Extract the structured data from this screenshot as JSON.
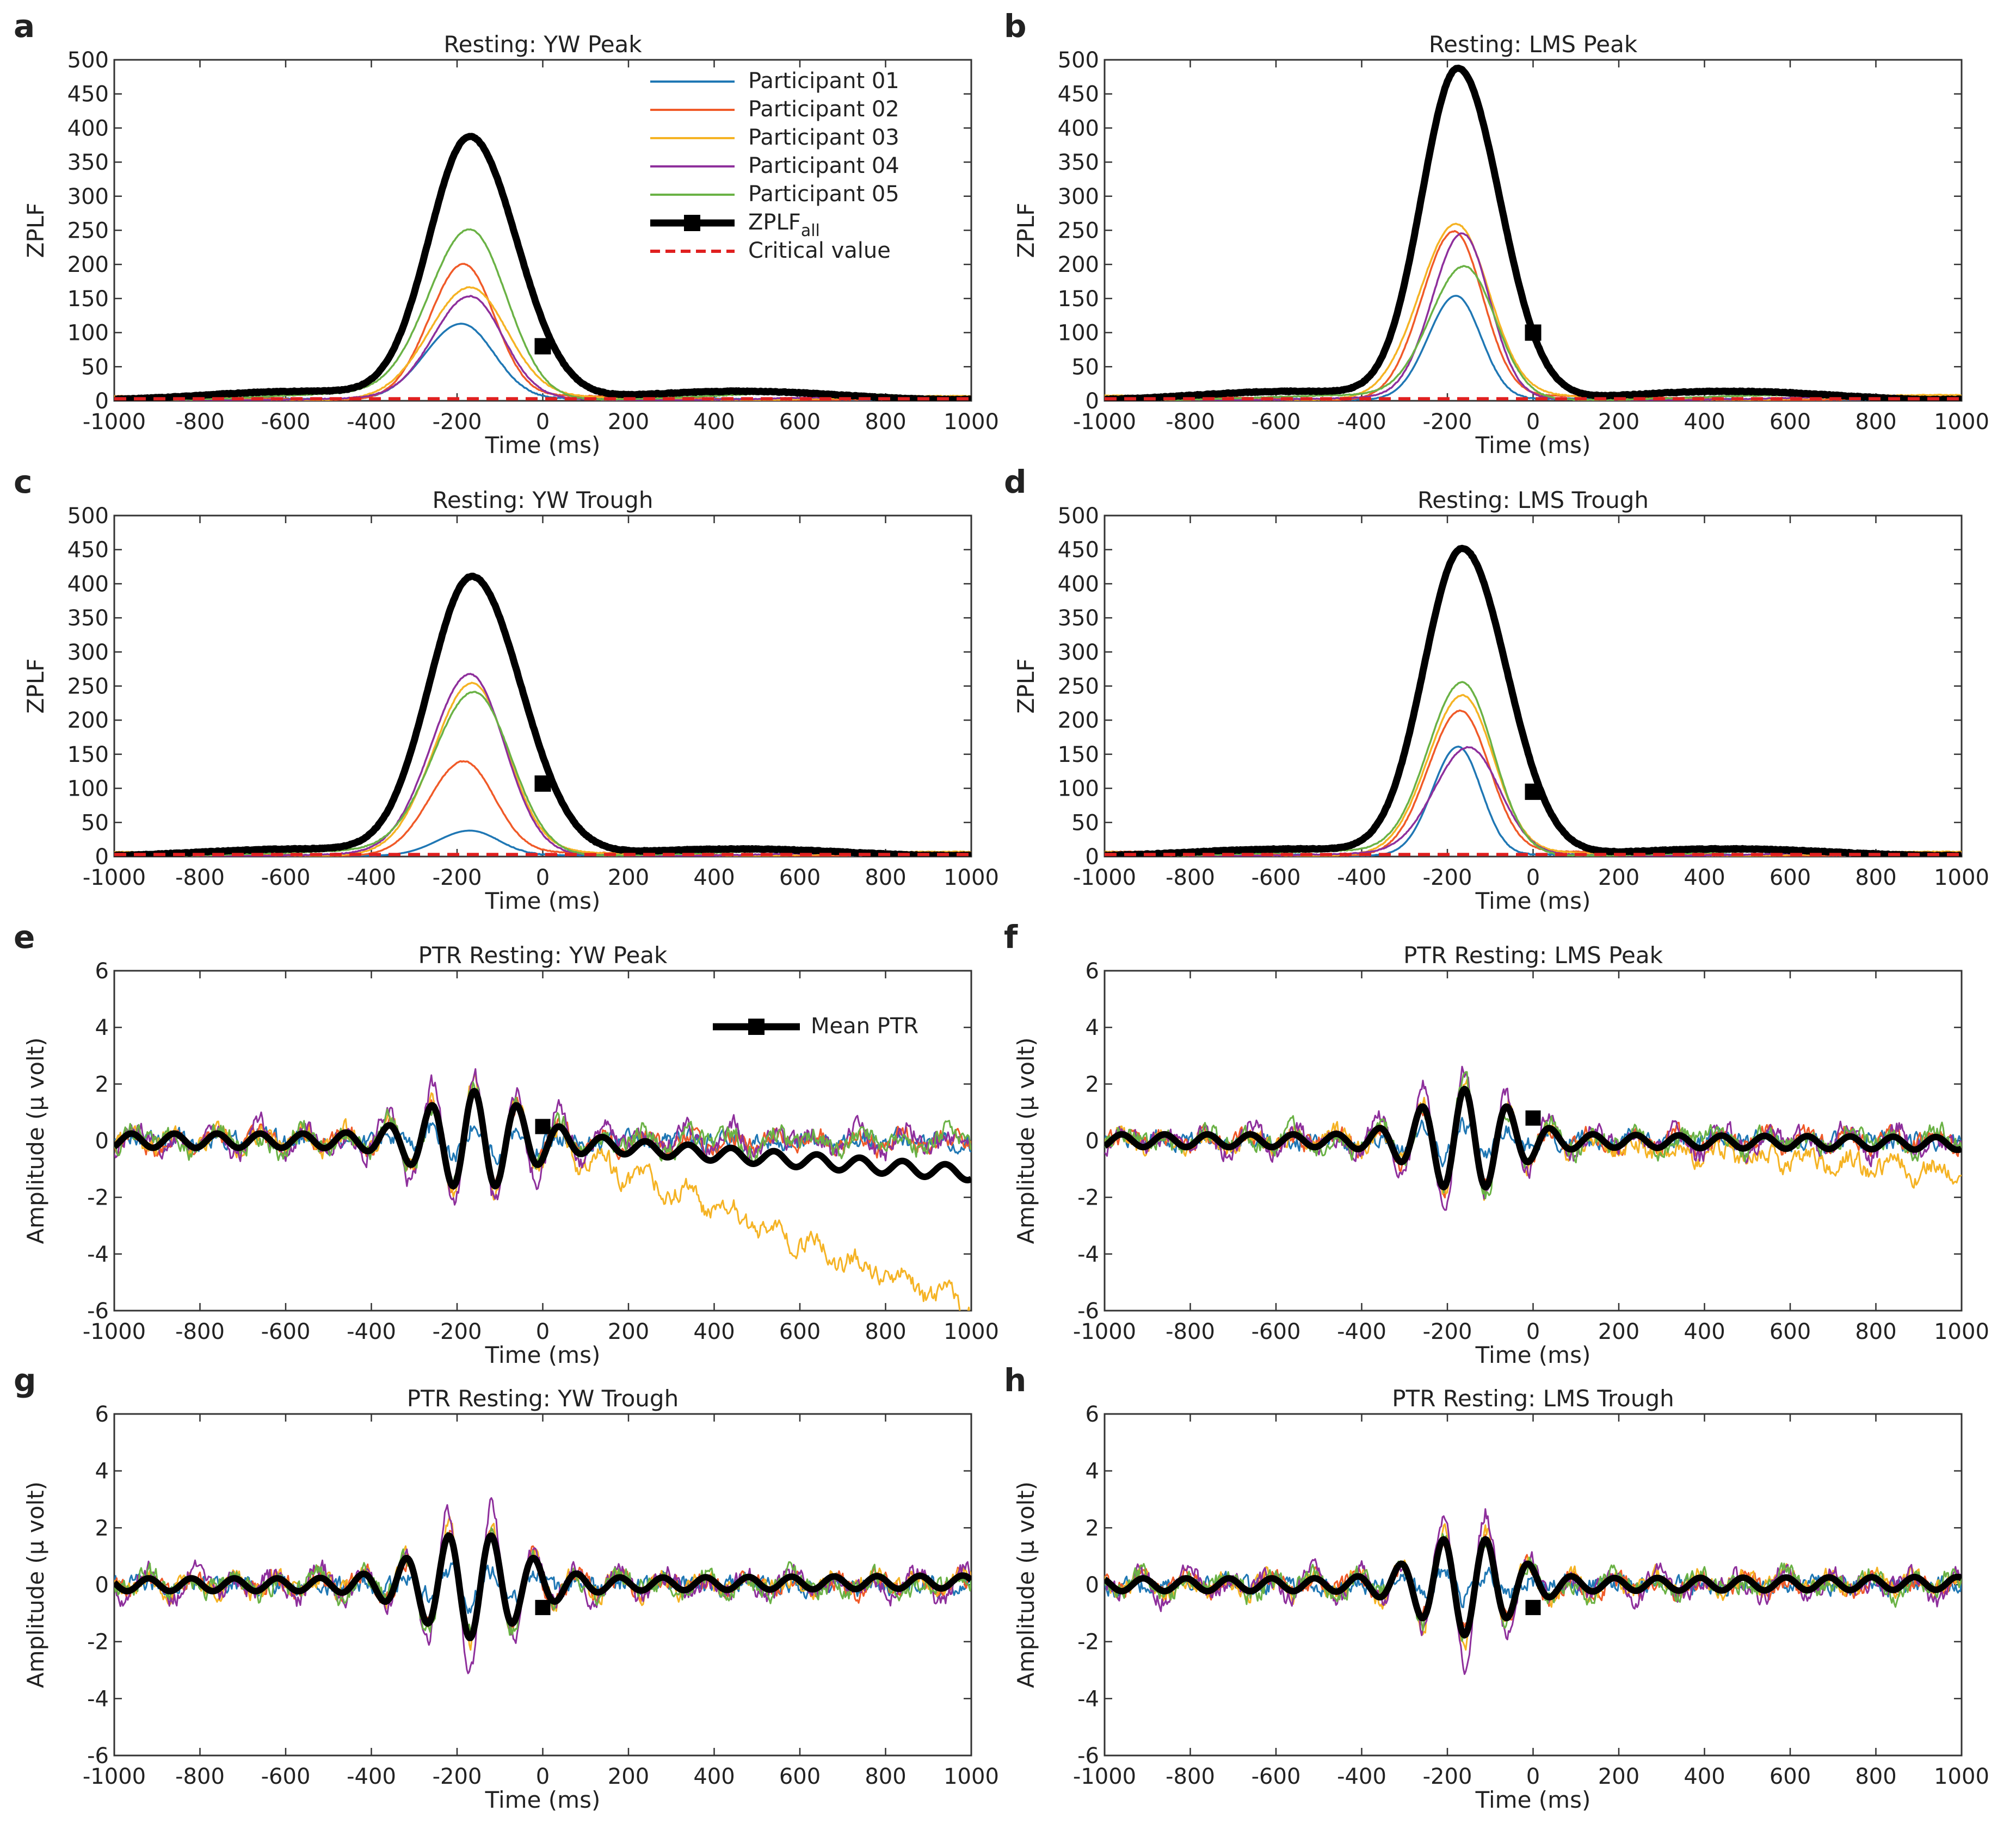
{
  "colors": {
    "participant_01": "#1f77b4",
    "participant_02": "#f05a28",
    "participant_03": "#f5b324",
    "participant_04": "#8e2f9c",
    "participant_05": "#6ab245",
    "aggregate": "#000000",
    "critical": "#e02020"
  },
  "chart_data": [
    {
      "id": "a",
      "type": "line",
      "letter": "a",
      "title": "Resting: YW Peak",
      "xlabel": "Time (ms)",
      "ylabel": "ZPLF",
      "xlim": [
        -1000,
        1000
      ],
      "ylim": [
        0,
        500
      ],
      "xticks": [
        -1000,
        -800,
        -600,
        -400,
        -200,
        0,
        200,
        400,
        600,
        800,
        1000
      ],
      "yticks": [
        0,
        50,
        100,
        150,
        200,
        250,
        300,
        350,
        400,
        450,
        500
      ],
      "legend": {
        "location": "top-right",
        "entries": [
          "Participant 01",
          "Participant 02",
          "Participant 03",
          "Participant 04",
          "Participant 05",
          "ZPLF",
          "Critical value"
        ],
        "aggregate_subscript": "all"
      },
      "series": [
        {
          "name": "Participant 01",
          "peak_ms": -190,
          "peak": 112,
          "width": 85,
          "base": 3
        },
        {
          "name": "Participant 02",
          "peak_ms": -185,
          "peak": 197,
          "width": 80,
          "base": 5
        },
        {
          "name": "Participant 03",
          "peak_ms": -170,
          "peak": 160,
          "width": 95,
          "base": 5
        },
        {
          "name": "Participant 04",
          "peak_ms": -170,
          "peak": 148,
          "width": 85,
          "base": 4
        },
        {
          "name": "Participant 05",
          "peak_ms": -170,
          "peak": 244,
          "width": 95,
          "base": 8
        },
        {
          "name": "ZPLFall",
          "peak_ms": -170,
          "peak": 384,
          "width": 95,
          "base": 10,
          "marker_at_ms": 0,
          "marker_value": 80
        }
      ],
      "critical_value": 3
    },
    {
      "id": "b",
      "type": "line",
      "letter": "b",
      "title": "Resting: LMS Peak",
      "xlabel": "Time (ms)",
      "ylabel": "ZPLF",
      "xlim": [
        -1000,
        1000
      ],
      "ylim": [
        0,
        500
      ],
      "xticks": [
        -1000,
        -800,
        -600,
        -400,
        -200,
        0,
        200,
        400,
        600,
        800,
        1000
      ],
      "yticks": [
        0,
        50,
        100,
        150,
        200,
        250,
        300,
        350,
        400,
        450,
        500
      ],
      "series": [
        {
          "name": "Participant 01",
          "peak_ms": -180,
          "peak": 153,
          "width": 65,
          "base": 3
        },
        {
          "name": "Participant 02",
          "peak_ms": -185,
          "peak": 245,
          "width": 75,
          "base": 5
        },
        {
          "name": "Participant 03",
          "peak_ms": -180,
          "peak": 252,
          "width": 85,
          "base": 6
        },
        {
          "name": "Participant 04",
          "peak_ms": -165,
          "peak": 240,
          "width": 70,
          "base": 4
        },
        {
          "name": "Participant 05",
          "peak_ms": -160,
          "peak": 192,
          "width": 80,
          "base": 6
        },
        {
          "name": "ZPLFall",
          "peak_ms": -175,
          "peak": 484,
          "width": 85,
          "base": 10,
          "marker_at_ms": 0,
          "marker_value": 100
        }
      ],
      "critical_value": 3
    },
    {
      "id": "c",
      "type": "line",
      "letter": "c",
      "title": "Resting: YW Trough",
      "xlabel": "Time (ms)",
      "ylabel": "ZPLF",
      "xlim": [
        -1000,
        1000
      ],
      "ylim": [
        0,
        500
      ],
      "xticks": [
        -1000,
        -800,
        -600,
        -400,
        -200,
        0,
        200,
        400,
        600,
        800,
        1000
      ],
      "yticks": [
        0,
        50,
        100,
        150,
        200,
        250,
        300,
        350,
        400,
        450,
        500
      ],
      "series": [
        {
          "name": "Participant 01",
          "peak_ms": -170,
          "peak": 37,
          "width": 75,
          "base": 2
        },
        {
          "name": "Participant 02",
          "peak_ms": -185,
          "peak": 137,
          "width": 80,
          "base": 4
        },
        {
          "name": "Participant 03",
          "peak_ms": -165,
          "peak": 248,
          "width": 90,
          "base": 5
        },
        {
          "name": "Participant 04",
          "peak_ms": -170,
          "peak": 262,
          "width": 90,
          "base": 4
        },
        {
          "name": "Participant 05",
          "peak_ms": -160,
          "peak": 236,
          "width": 95,
          "base": 6
        },
        {
          "name": "ZPLFall",
          "peak_ms": -165,
          "peak": 408,
          "width": 100,
          "base": 8,
          "marker_at_ms": 0,
          "marker_value": 107
        }
      ],
      "critical_value": 3
    },
    {
      "id": "d",
      "type": "line",
      "letter": "d",
      "title": "Resting: LMS Trough",
      "xlabel": "Time (ms)",
      "ylabel": "ZPLF",
      "xlim": [
        -1000,
        1000
      ],
      "ylim": [
        0,
        500
      ],
      "xticks": [
        -1000,
        -800,
        -600,
        -400,
        -200,
        0,
        200,
        400,
        600,
        800,
        1000
      ],
      "yticks": [
        0,
        50,
        100,
        150,
        200,
        250,
        300,
        350,
        400,
        450,
        500
      ],
      "series": [
        {
          "name": "Participant 01",
          "peak_ms": -175,
          "peak": 160,
          "width": 60,
          "base": 3
        },
        {
          "name": "Participant 02",
          "peak_ms": -170,
          "peak": 210,
          "width": 75,
          "base": 5
        },
        {
          "name": "Participant 03",
          "peak_ms": -165,
          "peak": 230,
          "width": 80,
          "base": 5
        },
        {
          "name": "Participant 04",
          "peak_ms": -150,
          "peak": 155,
          "width": 80,
          "base": 4
        },
        {
          "name": "Participant 05",
          "peak_ms": -165,
          "peak": 250,
          "width": 80,
          "base": 6
        },
        {
          "name": "ZPLFall",
          "peak_ms": -165,
          "peak": 449,
          "width": 90,
          "base": 8,
          "marker_at_ms": 0,
          "marker_value": 95
        }
      ],
      "critical_value": 3
    },
    {
      "id": "e",
      "type": "line",
      "letter": "e",
      "title": "PTR Resting: YW Peak",
      "xlabel": "Time (ms)",
      "ylabel": "Amplitude (µ volt)",
      "xlim": [
        -1000,
        1000
      ],
      "ylim": [
        -6,
        6
      ],
      "xticks": [
        -1000,
        -800,
        -600,
        -400,
        -200,
        0,
        200,
        400,
        600,
        800,
        1000
      ],
      "yticks": [
        -6,
        -4,
        -2,
        0,
        2,
        4,
        6
      ],
      "legend": {
        "location": "top-right",
        "entries": [
          "Mean PTR"
        ]
      },
      "oscillation": {
        "frequency_hz": 10,
        "burst_center_ms": -160,
        "burst_amplitude": 1.5,
        "burst_width_ms": 110,
        "background_amplitude": 0.28
      },
      "mean_drift_end": -1.15,
      "participant_03_drift_end": -5.9,
      "marker_at_ms": 0,
      "marker_value": 0.5
    },
    {
      "id": "f",
      "type": "line",
      "letter": "f",
      "title": "PTR Resting: LMS Peak",
      "xlabel": "Time (ms)",
      "ylabel": "Amplitude (µ volt)",
      "xlim": [
        -1000,
        1000
      ],
      "ylim": [
        -6,
        6
      ],
      "xticks": [
        -1000,
        -800,
        -600,
        -400,
        -200,
        0,
        200,
        400,
        600,
        800,
        1000
      ],
      "yticks": [
        -6,
        -4,
        -2,
        0,
        2,
        4,
        6
      ],
      "oscillation": {
        "frequency_hz": 10,
        "burst_center_ms": -160,
        "burst_amplitude": 1.6,
        "burst_width_ms": 100,
        "background_amplitude": 0.25
      },
      "mean_drift_end": -0.1,
      "participant_03_drift_end": -1.1,
      "marker_at_ms": 0,
      "marker_value": 0.8
    },
    {
      "id": "g",
      "type": "line",
      "letter": "g",
      "title": "PTR Resting: YW Trough",
      "xlabel": "Time (ms)",
      "ylabel": "Amplitude (µ volt)",
      "xlim": [
        -1000,
        1000
      ],
      "ylim": [
        -6,
        6
      ],
      "xticks": [
        -1000,
        -800,
        -600,
        -400,
        -200,
        0,
        200,
        400,
        600,
        800,
        1000
      ],
      "yticks": [
        -6,
        -4,
        -2,
        0,
        2,
        4,
        6
      ],
      "oscillation": {
        "frequency_hz": 10,
        "burst_center_ms": -170,
        "burst_amplitude": 1.65,
        "burst_width_ms": 115,
        "background_amplitude": 0.25,
        "phase_trough": true
      },
      "mean_drift_end": 0.1,
      "participant_03_drift_end": 0.1,
      "marker_at_ms": 0,
      "marker_value": -0.8
    },
    {
      "id": "h",
      "type": "line",
      "letter": "h",
      "title": "PTR Resting: LMS Trough",
      "xlabel": "Time (ms)",
      "ylabel": "Amplitude (µ volt)",
      "xlim": [
        -1000,
        1000
      ],
      "ylim": [
        -6,
        6
      ],
      "xticks": [
        -1000,
        -800,
        -600,
        -400,
        -200,
        0,
        200,
        400,
        600,
        800,
        1000
      ],
      "yticks": [
        -6,
        -4,
        -2,
        0,
        2,
        4,
        6
      ],
      "oscillation": {
        "frequency_hz": 10,
        "burst_center_ms": -160,
        "burst_amplitude": 1.55,
        "burst_width_ms": 100,
        "background_amplitude": 0.25,
        "phase_trough": true
      },
      "mean_drift_end": 0.05,
      "participant_03_drift_end": 0.1,
      "marker_at_ms": 0,
      "marker_value": -0.8
    }
  ]
}
